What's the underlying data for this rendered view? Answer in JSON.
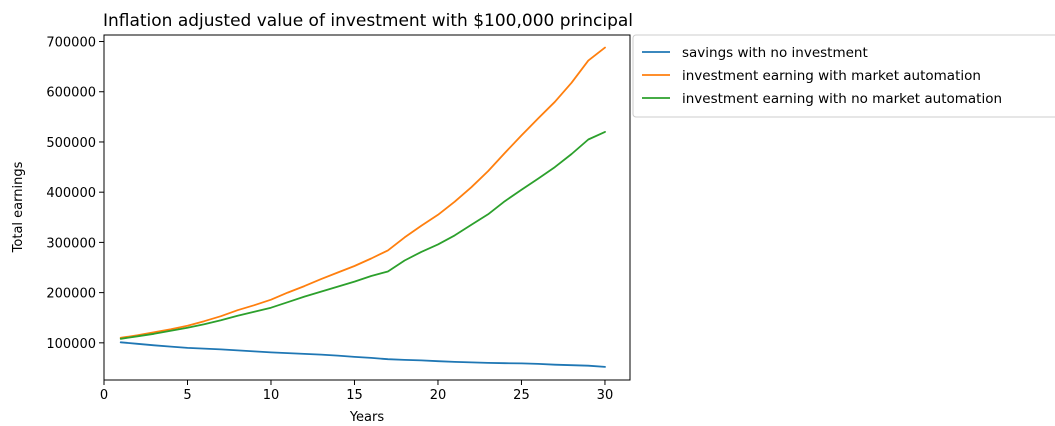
{
  "chart_data": {
    "type": "line",
    "title": "Inflation adjusted value of investment with $100,000 principal",
    "xlabel": "Years",
    "ylabel": "Total earnings",
    "xlim": [
      0,
      31.5
    ],
    "ylim": [
      26000,
      713000
    ],
    "xticks": [
      0,
      5,
      10,
      15,
      20,
      25,
      30
    ],
    "yticks": [
      100000,
      200000,
      300000,
      400000,
      500000,
      600000,
      700000
    ],
    "grid": false,
    "legend_position": "outside-top-right",
    "x": [
      1,
      2,
      3,
      4,
      5,
      6,
      7,
      8,
      9,
      10,
      11,
      12,
      13,
      14,
      15,
      16,
      17,
      18,
      19,
      20,
      21,
      22,
      23,
      24,
      25,
      26,
      27,
      28,
      29,
      30
    ],
    "series": [
      {
        "name": "savings with no investment",
        "color": "#1f77b4",
        "values": [
          101000,
          98000,
          95000,
          92500,
          90000,
          88500,
          87000,
          85000,
          83000,
          81000,
          79500,
          78000,
          76500,
          74500,
          72000,
          70000,
          67500,
          66000,
          65000,
          63500,
          62000,
          61000,
          60000,
          59500,
          59000,
          58000,
          56500,
          55500,
          54500,
          52000
        ]
      },
      {
        "name": "investment earning with market automation",
        "color": "#ff7f0e",
        "values": [
          110000,
          115000,
          121000,
          127000,
          134000,
          143000,
          153000,
          165000,
          175000,
          186000,
          200000,
          213000,
          227000,
          240000,
          253000,
          268000,
          284000,
          310000,
          333000,
          355000,
          381000,
          410000,
          442000,
          478000,
          513000,
          547000,
          580000,
          618000,
          662000,
          688000
        ]
      },
      {
        "name": "investment earning with no market automation",
        "color": "#2ca02c",
        "values": [
          108000,
          113000,
          118000,
          124000,
          130000,
          137000,
          145000,
          154000,
          162000,
          170000,
          181000,
          192000,
          202000,
          212000,
          222000,
          233000,
          242000,
          264000,
          281000,
          296000,
          314000,
          335000,
          356000,
          382000,
          405000,
          427000,
          450000,
          476000,
          505000,
          520000
        ]
      }
    ]
  }
}
